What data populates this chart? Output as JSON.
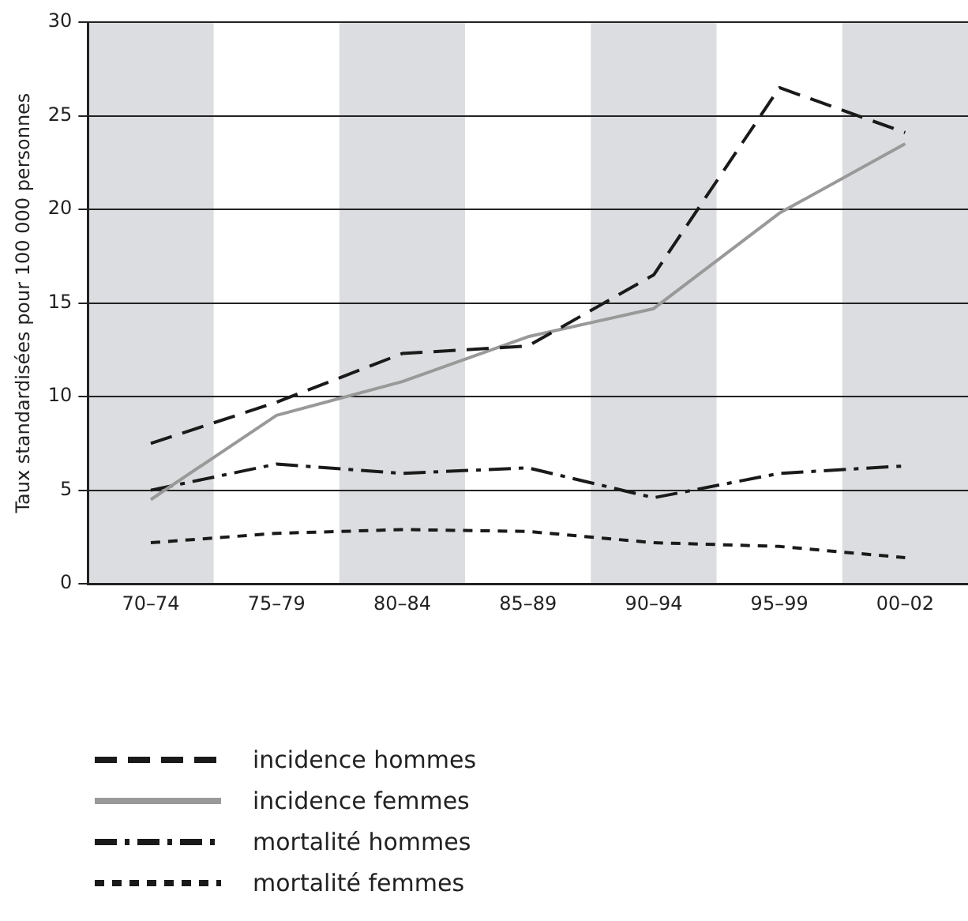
{
  "chart_data": {
    "type": "line",
    "ylabel": "Taux standardisées pour 100 000 personnes",
    "categories": [
      "70–74",
      "75–79",
      "80–84",
      "85–89",
      "90–94",
      "95–99",
      "00–02"
    ],
    "series": [
      {
        "name": "incidence hommes",
        "color": "#1a1a1a",
        "line_style": "dashed",
        "values": [
          7.5,
          9.7,
          12.3,
          12.7,
          16.5,
          26.5,
          24.1
        ]
      },
      {
        "name": "incidence femmes",
        "color": "#999999",
        "line_style": "solid",
        "values": [
          4.5,
          9.0,
          10.8,
          13.2,
          14.7,
          19.8,
          23.5
        ]
      },
      {
        "name": "mortalité hommes",
        "color": "#1a1a1a",
        "line_style": "dashed",
        "values": [
          5.0,
          6.4,
          5.9,
          6.2,
          4.6,
          5.9,
          6.3
        ]
      },
      {
        "name": "mortalité femmes",
        "color": "#1a1a1a",
        "line_style": "dashed",
        "values": [
          2.2,
          2.7,
          2.9,
          2.8,
          2.2,
          2.0,
          1.4
        ]
      }
    ],
    "ylim": [
      0,
      30
    ],
    "yticks": [
      0,
      5,
      10,
      15,
      20,
      25,
      30
    ],
    "grid": "y",
    "legend": "bottom",
    "bands": [
      {
        "axis": "x",
        "from": "70–74",
        "to": "70–74",
        "color": "#dcdde0"
      },
      {
        "axis": "x",
        "from": "80–84",
        "to": "80–84",
        "color": "#dcdde0"
      },
      {
        "axis": "x",
        "from": "90–94",
        "to": "90–94",
        "color": "#dcdde0"
      },
      {
        "axis": "x",
        "from": "00–02",
        "to": "00–02",
        "color": "#dcdde0"
      }
    ]
  }
}
